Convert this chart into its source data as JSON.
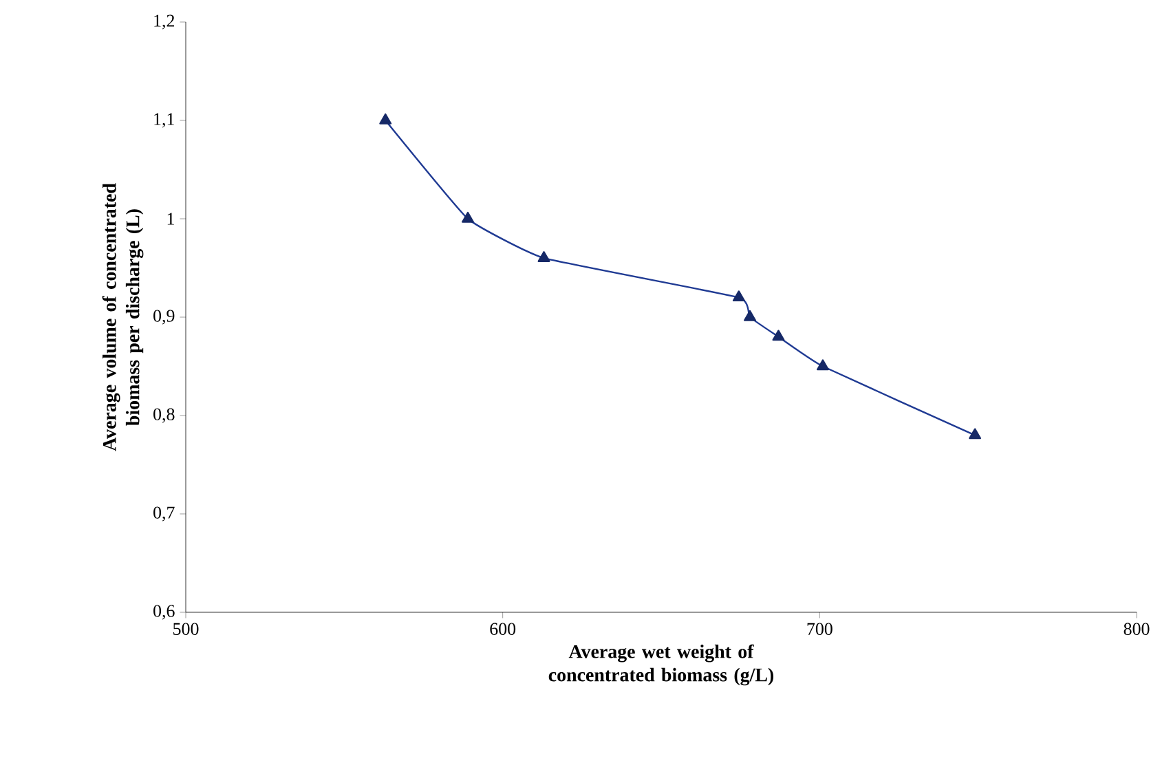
{
  "chart_data": {
    "type": "line",
    "xlabel": "Average wet weight of concentrated biomass (g/L)",
    "ylabel": "Average volume of concentrated biomass per discharge (L)",
    "x": [
      563,
      589,
      613,
      674.5,
      678,
      687,
      701,
      749
    ],
    "series": [
      {
        "color": "#1f3a93",
        "values": [
          1.1,
          1.0,
          0.96,
          0.92,
          0.9,
          0.88,
          0.85,
          0.78
        ]
      }
    ],
    "marker": "triangle",
    "line_style": "solid",
    "xlim": [
      500,
      800
    ],
    "ylim": [
      0.6,
      1.2
    ],
    "xticks": [
      500,
      600,
      700,
      800
    ],
    "yticks": [
      {
        "value": 0.6,
        "label": "0,6"
      },
      {
        "value": 0.7,
        "label": "0,7"
      },
      {
        "value": 0.8,
        "label": "0,8"
      },
      {
        "value": 0.9,
        "label": "0,9"
      },
      {
        "value": 1.0,
        "label": "1"
      },
      {
        "value": 1.1,
        "label": "1,1"
      },
      {
        "value": 1.2,
        "label": "1,2"
      }
    ]
  }
}
